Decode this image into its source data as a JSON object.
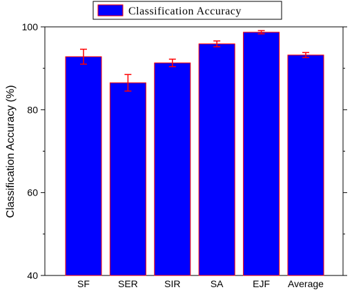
{
  "chart_data": {
    "type": "bar",
    "categories": [
      "SF",
      "SER",
      "SIR",
      "SA",
      "EJF",
      "Average"
    ],
    "series": [
      {
        "name": "Classification Accuracy",
        "values": [
          92.8,
          86.5,
          91.3,
          95.9,
          98.7,
          93.2
        ],
        "errors": [
          1.8,
          2.0,
          0.9,
          0.7,
          0.4,
          0.6
        ]
      }
    ],
    "ylabel": "Classification Accuracy (%)",
    "xlabel": "",
    "ylim": [
      40,
      100
    ],
    "yticks": [
      40,
      60,
      80,
      100
    ],
    "legend_position": "top-center",
    "grid": false,
    "colors": {
      "bar_fill": "#0000ff",
      "bar_edge": "#ff0000",
      "error_bar": "#ff0000",
      "axis": "#000000"
    }
  }
}
